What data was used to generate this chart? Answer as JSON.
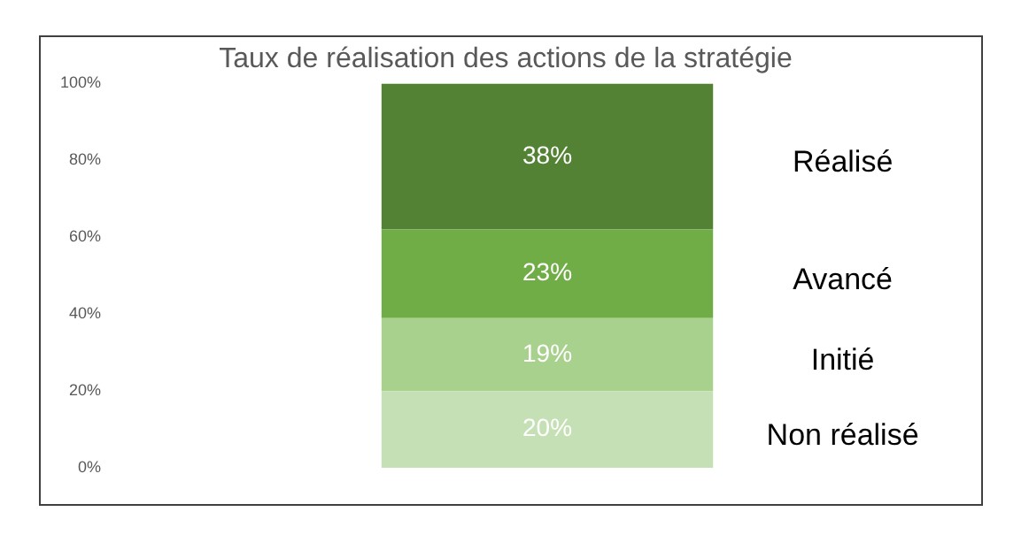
{
  "chart_data": {
    "type": "bar",
    "title": "Taux de réalisation des actions de la stratégie",
    "categories": [
      null
    ],
    "stacked": true,
    "legend": false,
    "grid": false,
    "ylim": [
      0,
      100
    ],
    "yticks": [
      {
        "value": 0,
        "label": "0%"
      },
      {
        "value": 20,
        "label": "20%"
      },
      {
        "value": 40,
        "label": "40%"
      },
      {
        "value": 60,
        "label": "60%"
      },
      {
        "value": 80,
        "label": "80%"
      },
      {
        "value": 100,
        "label": "100%"
      }
    ],
    "series": [
      {
        "name": "Non réalisé",
        "color": "#c5e0b4",
        "values": [
          20
        ],
        "value_labels": [
          "20%"
        ]
      },
      {
        "name": "Initié",
        "color": "#a9d18e",
        "values": [
          19
        ],
        "value_labels": [
          "19%"
        ]
      },
      {
        "name": "Avancé",
        "color": "#70ad47",
        "values": [
          23
        ],
        "value_labels": [
          "23%"
        ]
      },
      {
        "name": "Réalisé",
        "color": "#548235",
        "values": [
          38
        ],
        "value_labels": [
          "38%"
        ]
      }
    ]
  }
}
